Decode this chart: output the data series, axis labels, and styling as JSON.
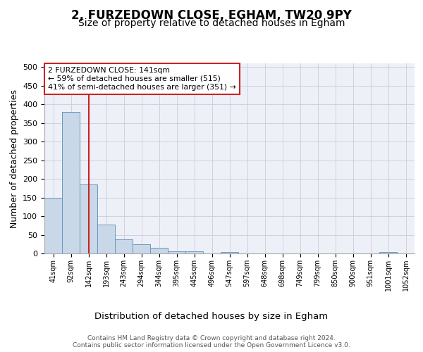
{
  "title1": "2, FURZEDOWN CLOSE, EGHAM, TW20 9PY",
  "title2": "Size of property relative to detached houses in Egham",
  "xlabel": "Distribution of detached houses by size in Egham",
  "ylabel": "Number of detached properties",
  "bar_labels": [
    "41sqm",
    "92sqm",
    "142sqm",
    "193sqm",
    "243sqm",
    "294sqm",
    "344sqm",
    "395sqm",
    "445sqm",
    "496sqm",
    "547sqm",
    "597sqm",
    "648sqm",
    "698sqm",
    "749sqm",
    "799sqm",
    "850sqm",
    "900sqm",
    "951sqm",
    "1001sqm",
    "1052sqm"
  ],
  "bar_values": [
    150,
    380,
    185,
    77,
    38,
    25,
    15,
    6,
    5,
    0,
    4,
    0,
    0,
    0,
    0,
    0,
    0,
    0,
    0,
    4,
    0
  ],
  "bar_color": "#c8d8e8",
  "bar_edge_color": "#6699bb",
  "grid_color": "#ccccdd",
  "bg_color": "#eef0f8",
  "vline_x": 2,
  "vline_color": "#cc2222",
  "annotation_text": "2 FURZEDOWN CLOSE: 141sqm\n← 59% of detached houses are smaller (515)\n41% of semi-detached houses are larger (351) →",
  "annotation_box_color": "#ffffff",
  "annotation_box_edgecolor": "#cc2222",
  "ylim": [
    0,
    510
  ],
  "yticks": [
    0,
    50,
    100,
    150,
    200,
    250,
    300,
    350,
    400,
    450,
    500
  ],
  "footer": "Contains HM Land Registry data © Crown copyright and database right 2024.\nContains public sector information licensed under the Open Government Licence v3.0.",
  "title_fontsize": 12,
  "subtitle_fontsize": 10,
  "ylabel_fontsize": 9,
  "xlabel_fontsize": 9.5
}
